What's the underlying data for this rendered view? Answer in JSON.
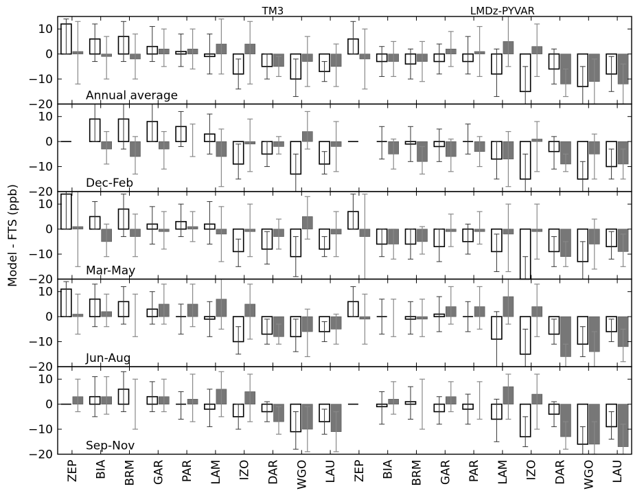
{
  "chart_data": {
    "type": "bar",
    "ylabel": "Model - FTS (ppb)",
    "group_labels": [
      "TM3",
      "LMDz-PYVAR"
    ],
    "categories": [
      "ZEP",
      "BIA",
      "BRM",
      "GAR",
      "PAR",
      "LAM",
      "IZO",
      "DAR",
      "WGO",
      "LAU",
      "ZEP",
      "BIA",
      "BRM",
      "GAR",
      "PAR",
      "LAM",
      "IZO",
      "DAR",
      "WGO",
      "LAU"
    ],
    "ylim": [
      -20,
      15
    ],
    "yticks": [
      -20,
      -10,
      0,
      10
    ],
    "ytick_labels": [
      "−20",
      "−10",
      "0",
      "10"
    ],
    "grid": false,
    "colors": {
      "open_bar_fill": "#ffffff",
      "open_bar_edge": "#000000",
      "filled_bar": "#777777",
      "error_bar_open": "#333333",
      "error_bar_filled": "#888888"
    },
    "panels": [
      {
        "label": "Annual average",
        "open": [
          {
            "v": 12,
            "lo": 0,
            "hi": 14
          },
          {
            "v": 6,
            "lo": -3,
            "hi": 12
          },
          {
            "v": 7,
            "lo": -3,
            "hi": 13
          },
          {
            "v": 3,
            "lo": -3,
            "hi": 11
          },
          {
            "v": 1,
            "lo": -5,
            "hi": 8
          },
          {
            "v": -1,
            "lo": -8,
            "hi": 8
          },
          {
            "v": -8,
            "lo": -14,
            "hi": -2
          },
          {
            "v": -5,
            "lo": -10,
            "hi": 0
          },
          {
            "v": -10,
            "lo": -17,
            "hi": -2
          },
          {
            "v": -7,
            "lo": -11,
            "hi": -3
          },
          {
            "v": 6,
            "lo": 0,
            "hi": 13
          },
          {
            "v": -3,
            "lo": -9,
            "hi": 3
          },
          {
            "v": -4,
            "lo": -10,
            "hi": 2
          },
          {
            "v": -3,
            "lo": -8,
            "hi": 4
          },
          {
            "v": -3,
            "lo": -8,
            "hi": 7
          },
          {
            "v": -8,
            "lo": -17,
            "hi": 2
          },
          {
            "v": -15,
            "lo": -20,
            "hi": -5
          },
          {
            "v": -6,
            "lo": -12,
            "hi": 2
          },
          {
            "v": -13,
            "lo": -20,
            "hi": -5
          },
          {
            "v": -8,
            "lo": -15,
            "hi": -1
          }
        ],
        "filled": [
          {
            "v": 1,
            "lo": -12,
            "hi": 13
          },
          {
            "v": -1,
            "lo": -10,
            "hi": 7
          },
          {
            "v": -2,
            "lo": -10,
            "hi": 8
          },
          {
            "v": 2,
            "lo": -5,
            "hi": 10
          },
          {
            "v": 2,
            "lo": -6,
            "hi": 10
          },
          {
            "v": 4,
            "lo": -8,
            "hi": 14
          },
          {
            "v": 4,
            "lo": -12,
            "hi": 13
          },
          {
            "v": -5,
            "lo": -9,
            "hi": -1
          },
          {
            "v": -3,
            "lo": -13,
            "hi": 7
          },
          {
            "v": -5,
            "lo": -13,
            "hi": 4
          },
          {
            "v": -2,
            "lo": -14,
            "hi": 10
          },
          {
            "v": -3,
            "lo": -9,
            "hi": 5
          },
          {
            "v": -3,
            "lo": -11,
            "hi": 5
          },
          {
            "v": 2,
            "lo": -5,
            "hi": 9
          },
          {
            "v": 1,
            "lo": -9,
            "hi": 11
          },
          {
            "v": 5,
            "lo": -5,
            "hi": 15
          },
          {
            "v": 3,
            "lo": -9,
            "hi": 12
          },
          {
            "v": -12,
            "lo": -17,
            "hi": -6
          },
          {
            "v": -11,
            "lo": -20,
            "hi": -2
          },
          {
            "v": -12,
            "lo": -20,
            "hi": -4
          }
        ]
      },
      {
        "label": "Dec-Feb",
        "open": [
          {
            "v": 0,
            "lo": 0,
            "hi": 0
          },
          {
            "v": 9,
            "lo": 0,
            "hi": 15
          },
          {
            "v": 9,
            "lo": -3,
            "hi": 15
          },
          {
            "v": 8,
            "lo": 0,
            "hi": 15
          },
          {
            "v": 6,
            "lo": -2,
            "hi": 12
          },
          {
            "v": 3,
            "lo": -5,
            "hi": 11
          },
          {
            "v": -9,
            "lo": -15,
            "hi": -1
          },
          {
            "v": -5,
            "lo": -10,
            "hi": 0
          },
          {
            "v": -13,
            "lo": -20,
            "hi": -5
          },
          {
            "v": -9,
            "lo": -13,
            "hi": -4
          },
          {
            "v": 0,
            "lo": 0,
            "hi": 0
          },
          {
            "v": 0,
            "lo": -7,
            "hi": 6
          },
          {
            "v": -1,
            "lo": -8,
            "hi": 6
          },
          {
            "v": -2,
            "lo": -8,
            "hi": 5
          },
          {
            "v": 0,
            "lo": -5,
            "hi": 7
          },
          {
            "v": -7,
            "lo": -15,
            "hi": 0
          },
          {
            "v": -15,
            "lo": -20,
            "hi": -5
          },
          {
            "v": -4,
            "lo": -11,
            "hi": 2
          },
          {
            "v": -15,
            "lo": -20,
            "hi": -8
          },
          {
            "v": -10,
            "lo": -15,
            "hi": -3
          }
        ],
        "filled": [
          {
            "v": 0,
            "lo": 0,
            "hi": 0
          },
          {
            "v": -3,
            "lo": -9,
            "hi": 4
          },
          {
            "v": -6,
            "lo": -13,
            "hi": 2
          },
          {
            "v": -3,
            "lo": -11,
            "hi": 4
          },
          {
            "v": 0,
            "lo": -6,
            "hi": 7
          },
          {
            "v": -6,
            "lo": -18,
            "hi": 5
          },
          {
            "v": -1,
            "lo": -12,
            "hi": 9
          },
          {
            "v": -2,
            "lo": -5,
            "hi": 2
          },
          {
            "v": 4,
            "lo": -3,
            "hi": 12
          },
          {
            "v": -2,
            "lo": -12,
            "hi": 8
          },
          {
            "v": 0,
            "lo": 0,
            "hi": 0
          },
          {
            "v": -5,
            "lo": -11,
            "hi": 1
          },
          {
            "v": -8,
            "lo": -13,
            "hi": -2
          },
          {
            "v": -6,
            "lo": -12,
            "hi": 1
          },
          {
            "v": -4,
            "lo": -10,
            "hi": 2
          },
          {
            "v": -7,
            "lo": -18,
            "hi": 4
          },
          {
            "v": 1,
            "lo": -12,
            "hi": 8
          },
          {
            "v": -9,
            "lo": -12,
            "hi": -5
          },
          {
            "v": -5,
            "lo": -15,
            "hi": 3
          },
          {
            "v": -9,
            "lo": -15,
            "hi": -3
          }
        ]
      },
      {
        "label": "Mar-May",
        "open": [
          {
            "v": 14,
            "lo": 0,
            "hi": 15
          },
          {
            "v": 5,
            "lo": 0,
            "hi": 11
          },
          {
            "v": 8,
            "lo": -3,
            "hi": 14
          },
          {
            "v": 2,
            "lo": -6,
            "hi": 9
          },
          {
            "v": 3,
            "lo": -3,
            "hi": 10
          },
          {
            "v": 2,
            "lo": -6,
            "hi": 11
          },
          {
            "v": -9,
            "lo": -15,
            "hi": -4
          },
          {
            "v": -8,
            "lo": -14,
            "hi": -1
          },
          {
            "v": -11,
            "lo": -19,
            "hi": -3
          },
          {
            "v": -8,
            "lo": -11,
            "hi": -3
          },
          {
            "v": 7,
            "lo": 0,
            "hi": 14
          },
          {
            "v": -6,
            "lo": -11,
            "hi": 0
          },
          {
            "v": -6,
            "lo": -12,
            "hi": 0
          },
          {
            "v": -7,
            "lo": -13,
            "hi": 0
          },
          {
            "v": -5,
            "lo": -10,
            "hi": 2
          },
          {
            "v": -9,
            "lo": -17,
            "hi": -2
          },
          {
            "v": -20,
            "lo": -20,
            "hi": -11
          },
          {
            "v": -9,
            "lo": -15,
            "hi": -3
          },
          {
            "v": -13,
            "lo": -20,
            "hi": -5
          },
          {
            "v": -7,
            "lo": -12,
            "hi": -1
          }
        ],
        "filled": [
          {
            "v": 1,
            "lo": -15,
            "hi": 15
          },
          {
            "v": -5,
            "lo": -11,
            "hi": 2
          },
          {
            "v": -3,
            "lo": -11,
            "hi": 6
          },
          {
            "v": -1,
            "lo": -8,
            "hi": 7
          },
          {
            "v": 1,
            "lo": -5,
            "hi": 7
          },
          {
            "v": -2,
            "lo": -13,
            "hi": 9
          },
          {
            "v": -1,
            "lo": -11,
            "hi": 10
          },
          {
            "v": -3,
            "lo": -8,
            "hi": 4
          },
          {
            "v": 5,
            "lo": -4,
            "hi": 13
          },
          {
            "v": -2,
            "lo": -11,
            "hi": 7
          },
          {
            "v": -3,
            "lo": -20,
            "hi": 14
          },
          {
            "v": -6,
            "lo": -12,
            "hi": 0
          },
          {
            "v": -5,
            "lo": -10,
            "hi": 1
          },
          {
            "v": -1,
            "lo": -7,
            "hi": 6
          },
          {
            "v": -1,
            "lo": -6,
            "hi": 7
          },
          {
            "v": -2,
            "lo": -17,
            "hi": 10
          },
          {
            "v": -1,
            "lo": -12,
            "hi": 10
          },
          {
            "v": -11,
            "lo": -15,
            "hi": -5
          },
          {
            "v": -6,
            "lo": -16,
            "hi": 4
          },
          {
            "v": -9,
            "lo": -15,
            "hi": -2
          }
        ]
      },
      {
        "label": "Jun-Aug",
        "open": [
          {
            "v": 11,
            "lo": 0,
            "hi": 14
          },
          {
            "v": 7,
            "lo": -4,
            "hi": 13
          },
          {
            "v": 6,
            "lo": -3,
            "hi": 12
          },
          {
            "v": 3,
            "lo": -3,
            "hi": 10
          },
          {
            "v": 0,
            "lo": -7,
            "hi": 5
          },
          {
            "v": -1,
            "lo": -8,
            "hi": 6
          },
          {
            "v": -10,
            "lo": -15,
            "hi": -4
          },
          {
            "v": -7,
            "lo": -11,
            "hi": -1
          },
          {
            "v": -8,
            "lo": -14,
            "hi": -1
          },
          {
            "v": -6,
            "lo": -10,
            "hi": -2
          },
          {
            "v": 6,
            "lo": 0,
            "hi": 12
          },
          {
            "v": 0,
            "lo": -7,
            "hi": 7
          },
          {
            "v": -1,
            "lo": -7,
            "hi": 6
          },
          {
            "v": 1,
            "lo": -6,
            "hi": 8
          },
          {
            "v": 0,
            "lo": -6,
            "hi": 6
          },
          {
            "v": -9,
            "lo": -20,
            "hi": 2
          },
          {
            "v": -15,
            "lo": -20,
            "hi": -5
          },
          {
            "v": -7,
            "lo": -11,
            "hi": -1
          },
          {
            "v": -11,
            "lo": -16,
            "hi": -4
          },
          {
            "v": -6,
            "lo": -10,
            "hi": -1
          }
        ],
        "filled": [
          {
            "v": 1,
            "lo": -7,
            "hi": 9
          },
          {
            "v": 2,
            "lo": -4,
            "hi": 9
          },
          {
            "v": 0,
            "lo": -8,
            "hi": 9
          },
          {
            "v": 5,
            "lo": -3,
            "hi": 13
          },
          {
            "v": 5,
            "lo": -4,
            "hi": 13
          },
          {
            "v": 7,
            "lo": -5,
            "hi": 15
          },
          {
            "v": 5,
            "lo": -9,
            "hi": 13
          },
          {
            "v": -8,
            "lo": -11,
            "hi": -3
          },
          {
            "v": -6,
            "lo": -16,
            "hi": 3
          },
          {
            "v": -5,
            "lo": -11,
            "hi": 1
          },
          {
            "v": -1,
            "lo": -11,
            "hi": 9
          },
          {
            "v": 0,
            "lo": -8,
            "hi": 7
          },
          {
            "v": -1,
            "lo": -8,
            "hi": 7
          },
          {
            "v": 4,
            "lo": -3,
            "hi": 12
          },
          {
            "v": 4,
            "lo": -5,
            "hi": 12
          },
          {
            "v": 8,
            "lo": -3,
            "hi": 15
          },
          {
            "v": 4,
            "lo": -8,
            "hi": 13
          },
          {
            "v": -16,
            "lo": -20,
            "hi": -11
          },
          {
            "v": -14,
            "lo": -20,
            "hi": -6
          },
          {
            "v": -12,
            "lo": -18,
            "hi": -5
          }
        ]
      },
      {
        "label": "Sep-Nov",
        "open": [
          {
            "v": 0,
            "lo": 0,
            "hi": 0
          },
          {
            "v": 3,
            "lo": -5,
            "hi": 11
          },
          {
            "v": 6,
            "lo": -3,
            "hi": 13
          },
          {
            "v": 3,
            "lo": -3,
            "hi": 9
          },
          {
            "v": 0,
            "lo": -6,
            "hi": 5
          },
          {
            "v": -2,
            "lo": -9,
            "hi": 6
          },
          {
            "v": -5,
            "lo": -10,
            "hi": 0
          },
          {
            "v": -3,
            "lo": -7,
            "hi": 1
          },
          {
            "v": -11,
            "lo": -18,
            "hi": -3
          },
          {
            "v": -7,
            "lo": -12,
            "hi": -2
          },
          {
            "v": 0,
            "lo": 0,
            "hi": 0
          },
          {
            "v": -1,
            "lo": -8,
            "hi": 5
          },
          {
            "v": 1,
            "lo": -6,
            "hi": 7
          },
          {
            "v": -3,
            "lo": -8,
            "hi": 3
          },
          {
            "v": -2,
            "lo": -8,
            "hi": 4
          },
          {
            "v": -6,
            "lo": -15,
            "hi": 2
          },
          {
            "v": -13,
            "lo": -17,
            "hi": -5
          },
          {
            "v": -4,
            "lo": -9,
            "hi": 1
          },
          {
            "v": -16,
            "lo": -20,
            "hi": -9
          },
          {
            "v": -9,
            "lo": -14,
            "hi": -3
          }
        ],
        "filled": [
          {
            "v": 3,
            "lo": -3,
            "hi": 10
          },
          {
            "v": 3,
            "lo": -4,
            "hi": 11
          },
          {
            "v": 0,
            "lo": -10,
            "hi": 10
          },
          {
            "v": 3,
            "lo": -3,
            "hi": 10
          },
          {
            "v": 2,
            "lo": -7,
            "hi": 12
          },
          {
            "v": 6,
            "lo": -5,
            "hi": 13
          },
          {
            "v": 5,
            "lo": -7,
            "hi": 12
          },
          {
            "v": -7,
            "lo": -12,
            "hi": -1
          },
          {
            "v": -10,
            "lo": -19,
            "hi": -1
          },
          {
            "v": -11,
            "lo": -19,
            "hi": -3
          },
          {
            "v": 0,
            "lo": 0,
            "hi": 0
          },
          {
            "v": 2,
            "lo": -4,
            "hi": 9
          },
          {
            "v": 0,
            "lo": -10,
            "hi": 10
          },
          {
            "v": 3,
            "lo": -3,
            "hi": 9
          },
          {
            "v": 0,
            "lo": -6,
            "hi": 9
          },
          {
            "v": 7,
            "lo": -6,
            "hi": 12
          },
          {
            "v": 4,
            "lo": -10,
            "hi": 12
          },
          {
            "v": -13,
            "lo": -18,
            "hi": -7
          },
          {
            "v": -16,
            "lo": -20,
            "hi": -7
          },
          {
            "v": -17,
            "lo": -20,
            "hi": -8
          }
        ]
      }
    ]
  }
}
